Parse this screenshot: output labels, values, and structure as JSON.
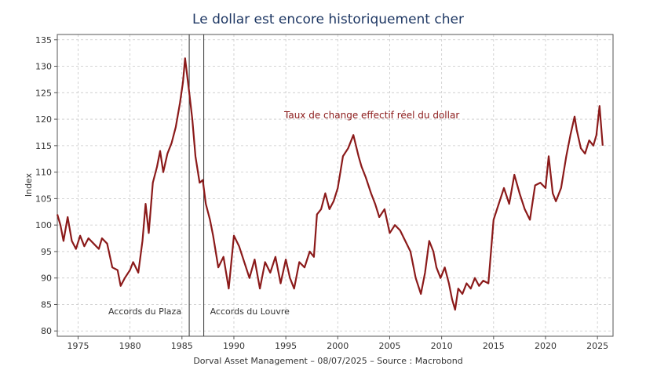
{
  "chart_data": {
    "type": "line",
    "title": "Le dollar est encore historiquement cher",
    "ylabel": "Index",
    "xlabel": "",
    "xlim": [
      1973,
      2026.5
    ],
    "ylim": [
      79,
      136
    ],
    "yticks": [
      80,
      85,
      90,
      95,
      100,
      105,
      110,
      115,
      120,
      125,
      130,
      135
    ],
    "xticks": [
      1975,
      1980,
      1985,
      1990,
      1995,
      2000,
      2005,
      2010,
      2015,
      2020,
      2025
    ],
    "grid": true,
    "series": [
      {
        "name": "Taux de change effectif réel du dollar",
        "color": "#8b1a1a",
        "x": [
          1973.0,
          1973.3,
          1973.6,
          1974.0,
          1974.4,
          1974.8,
          1975.2,
          1975.6,
          1976.0,
          1976.5,
          1977.0,
          1977.3,
          1977.8,
          1978.3,
          1978.8,
          1979.1,
          1979.5,
          1980.0,
          1980.3,
          1980.8,
          1981.2,
          1981.5,
          1981.8,
          1982.2,
          1982.6,
          1982.9,
          1983.2,
          1983.6,
          1984.0,
          1984.4,
          1984.8,
          1985.1,
          1985.3,
          1985.7,
          1986.0,
          1986.3,
          1986.7,
          1987.0,
          1987.3,
          1987.7,
          1988.0,
          1988.5,
          1989.0,
          1989.5,
          1990.0,
          1990.5,
          1991.0,
          1991.5,
          1992.0,
          1992.5,
          1993.0,
          1993.5,
          1994.0,
          1994.5,
          1995.0,
          1995.4,
          1995.8,
          1996.3,
          1996.8,
          1997.3,
          1997.7,
          1998.0,
          1998.4,
          1998.8,
          1999.2,
          1999.6,
          2000.0,
          2000.5,
          2001.0,
          2001.5,
          2002.0,
          2002.3,
          2002.7,
          2003.2,
          2003.6,
          2004.0,
          2004.5,
          2005.0,
          2005.5,
          2006.0,
          2006.5,
          2007.0,
          2007.5,
          2008.0,
          2008.4,
          2008.8,
          2009.2,
          2009.5,
          2009.9,
          2010.3,
          2010.7,
          2011.0,
          2011.3,
          2011.6,
          2012.0,
          2012.4,
          2012.8,
          2013.2,
          2013.6,
          2014.0,
          2014.5,
          2015.0,
          2015.5,
          2016.0,
          2016.5,
          2017.0,
          2017.5,
          2018.0,
          2018.5,
          2019.0,
          2019.5,
          2020.0,
          2020.3,
          2020.7,
          2021.0,
          2021.5,
          2022.0,
          2022.4,
          2022.8,
          2023.0,
          2023.4,
          2023.8,
          2024.2,
          2024.6,
          2024.9,
          2025.2,
          2025.5
        ],
        "values": [
          102.0,
          100.0,
          97.0,
          101.5,
          97.0,
          95.5,
          98.0,
          96.0,
          97.5,
          96.5,
          95.5,
          97.5,
          96.5,
          92.0,
          91.5,
          88.5,
          90.0,
          91.5,
          93.0,
          91.0,
          97.0,
          104.0,
          98.5,
          108.0,
          111.0,
          114.0,
          110.0,
          113.5,
          115.5,
          118.5,
          123.0,
          127.0,
          131.5,
          125.0,
          120.0,
          113.0,
          108.0,
          108.5,
          104.0,
          101.0,
          98.0,
          92.0,
          94.0,
          88.0,
          98.0,
          96.0,
          93.0,
          90.0,
          93.5,
          88.0,
          93.0,
          91.0,
          94.0,
          89.0,
          93.5,
          90.0,
          88.0,
          93.0,
          92.0,
          95.0,
          94.0,
          102.0,
          103.0,
          106.0,
          103.0,
          104.5,
          107.0,
          113.0,
          114.5,
          117.0,
          113.0,
          111.0,
          109.0,
          106.0,
          104.0,
          101.5,
          103.0,
          98.5,
          100.0,
          99.0,
          97.0,
          95.0,
          90.0,
          87.0,
          91.0,
          97.0,
          95.0,
          92.0,
          90.0,
          92.0,
          89.0,
          86.0,
          84.0,
          88.0,
          87.0,
          89.0,
          88.0,
          90.0,
          88.5,
          89.5,
          89.0,
          101.0,
          104.0,
          107.0,
          104.0,
          109.5,
          106.0,
          103.0,
          101.0,
          107.5,
          108.0,
          107.0,
          113.0,
          106.0,
          104.5,
          107.0,
          113.0,
          117.0,
          120.5,
          118.0,
          114.5,
          113.5,
          116.0,
          115.0,
          117.0,
          122.5,
          115.0
        ]
      }
    ],
    "annotations": [
      {
        "label": "Accords du Plaza",
        "x": 1985.7
      },
      {
        "label": "Accords du Louvre",
        "x": 1987.1
      }
    ],
    "source": "Dorval Asset Management  – 08/07/2025  –   Source : Macrobond"
  }
}
